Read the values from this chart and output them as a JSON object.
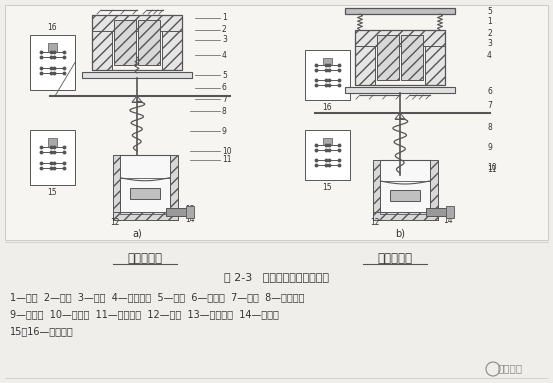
{
  "fig_width": 5.53,
  "fig_height": 3.83,
  "dpi": 100,
  "bg_color": "#f0eeea",
  "diagram_bg": "#f7f5f1",
  "line_color": "#555555",
  "text_color": "#333333",
  "title_text": "图 2-3   空气阻尼式时间继电器",
  "label_line1": "1—线圈  2—鐵心  3—衰鐵  4—反力弹货  5—推板  6—活塞杆  7—杠杆  8—塔形弹货",
  "label_line2": "9—弱弹货  10—橡皮膜  11—空气室壁  12—活塞  13—调节螺杆  14—进气孔",
  "label_line3": "15、16—微动开关",
  "watermark": "电工之家",
  "sub_a_label": "通电延时型",
  "sub_b_label": "断电延时型",
  "title_fontsize": 8.0,
  "label_fontsize": 7.0,
  "sublabel_fontsize": 8.5
}
